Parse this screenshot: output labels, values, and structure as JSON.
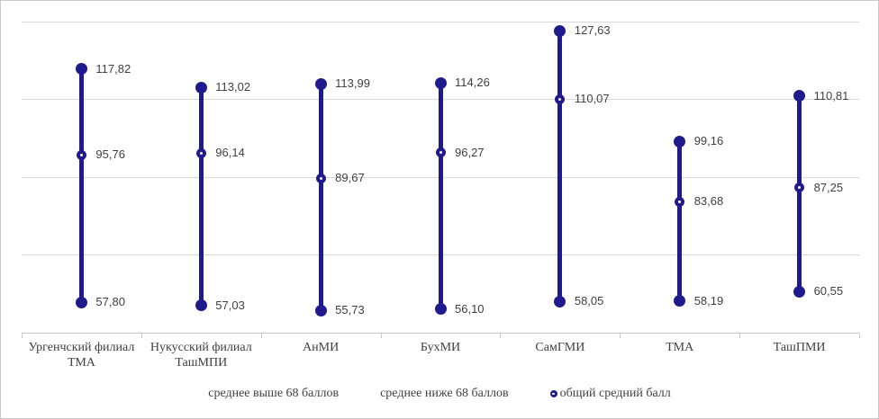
{
  "chart_data": {
    "type": "line",
    "subtype": "high-low-close-lollipop",
    "title": "",
    "xlabel": "",
    "ylabel": "",
    "categories": [
      "Ургенчский филиал ТМА",
      "Нукусский филиал ТашМПИ",
      "АнМИ",
      "БухМИ",
      "СамГМИ",
      "ТМА",
      "ТашПМИ"
    ],
    "series": [
      {
        "name": "среднее выше 68 баллов",
        "role": "high",
        "values": [
          117.82,
          113.02,
          113.99,
          114.26,
          127.63,
          99.16,
          110.81
        ],
        "labels": [
          "117,82",
          "113,02",
          "113,99",
          "114,26",
          "127,63",
          "99,16",
          "110,81"
        ]
      },
      {
        "name": "среднее ниже 68 баллов",
        "role": "low",
        "values": [
          57.8,
          57.03,
          55.73,
          56.1,
          58.05,
          58.19,
          60.55
        ],
        "labels": [
          "57,80",
          "57,03",
          "55,73",
          "56,10",
          "58,05",
          "58,19",
          "60,55"
        ]
      },
      {
        "name": "общий средний балл",
        "role": "close",
        "values": [
          95.76,
          96.14,
          89.67,
          96.27,
          110.07,
          83.68,
          87.25
        ],
        "labels": [
          "95,76",
          "96,14",
          "89,67",
          "96,27",
          "110,07",
          "83,68",
          "87,25"
        ]
      }
    ],
    "ylim": [
      50,
      130
    ],
    "gridline_step": 20,
    "grid": true,
    "y_tick_labels_visible": false,
    "legend_position": "bottom",
    "legend": [
      {
        "label": "среднее выше 68 баллов",
        "marker": "none"
      },
      {
        "label": "среднее ниже 68 баллов",
        "marker": "none"
      },
      {
        "label": "общий средний балл",
        "marker": "circle-dot"
      }
    ],
    "colors": {
      "series": "#201b8c",
      "gridline": "#d9d9d9",
      "axis": "#c6c6c6",
      "label_text": "#404040",
      "frame_border": "#c9c9c9"
    }
  }
}
